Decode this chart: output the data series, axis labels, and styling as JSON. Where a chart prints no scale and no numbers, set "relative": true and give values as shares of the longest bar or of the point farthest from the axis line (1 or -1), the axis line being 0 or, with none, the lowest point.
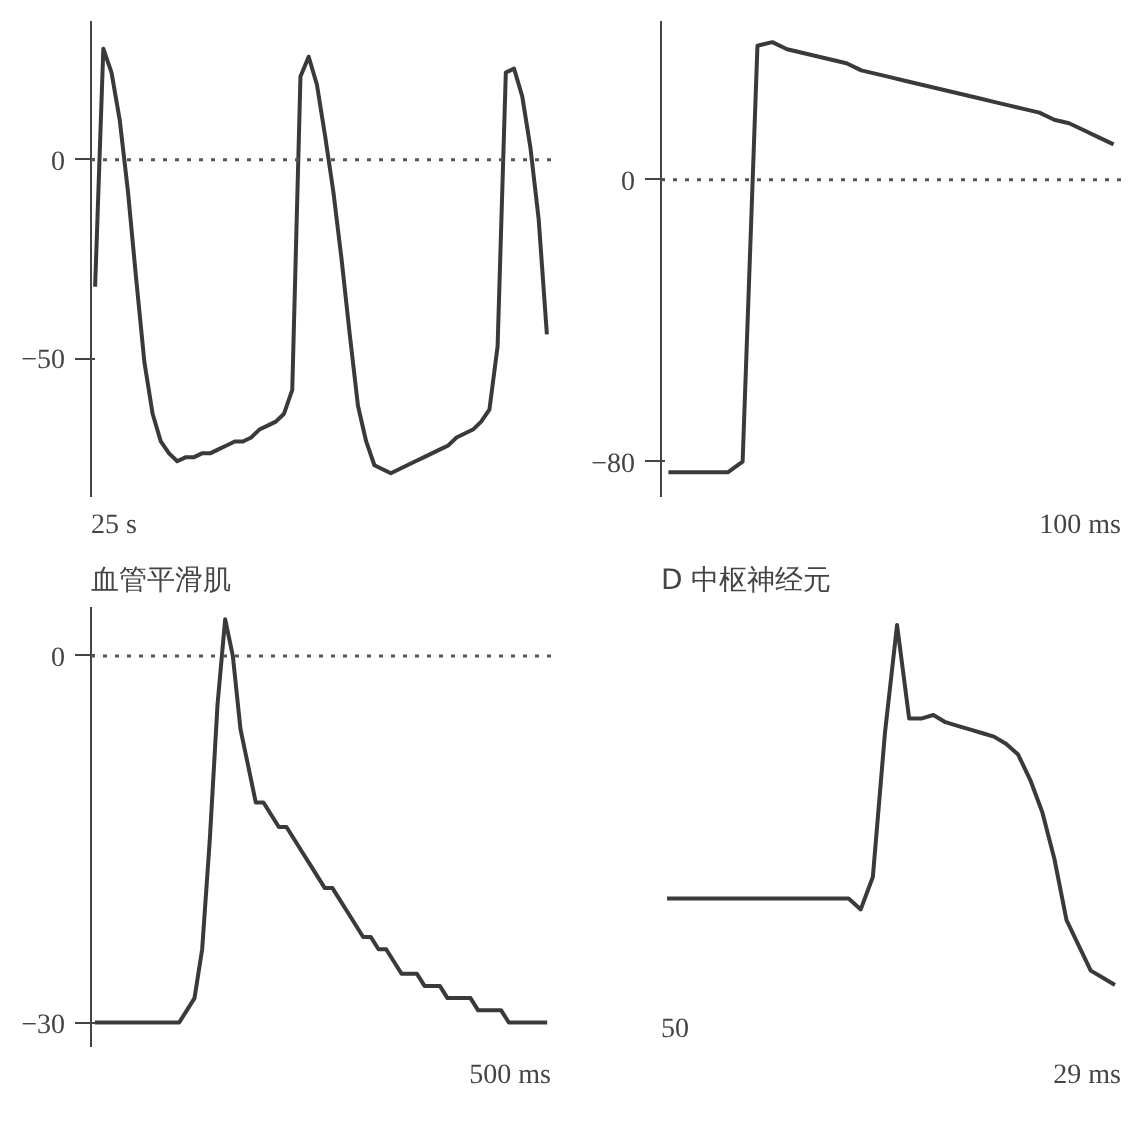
{
  "chart_data": [
    {
      "type": "line",
      "categories": [
        null,
        null,
        null,
        null,
        null,
        null,
        null,
        null,
        null,
        null,
        null,
        null,
        null,
        null,
        null,
        null,
        null,
        null,
        null,
        null,
        null,
        null,
        null,
        null,
        null,
        null,
        null,
        null,
        null,
        null,
        null,
        null,
        null,
        null,
        null,
        null,
        null,
        null,
        null,
        null,
        null,
        null,
        null,
        null,
        null,
        null,
        null,
        null,
        null,
        null,
        null,
        null,
        null,
        null,
        null,
        null
      ],
      "series": [
        {
          "color": "#3a3a3a",
          "values": [
            -32,
            28,
            22,
            10,
            -8,
            -30,
            -51,
            -64,
            -71,
            -74,
            -76,
            -75,
            -75,
            -74,
            -74,
            -73,
            -72,
            -71,
            -71,
            -70,
            -68,
            -67,
            -66,
            -64,
            -58,
            21,
            26,
            19,
            6,
            -8,
            -25,
            -44,
            -62,
            -71,
            -77,
            -78,
            -79,
            -78,
            -77,
            -76,
            -75,
            -74,
            -73,
            -72,
            -70,
            -69,
            -68,
            -66,
            -63,
            -47,
            22,
            23,
            16,
            3,
            -15,
            -44
          ]
        }
      ],
      "ylim": [
        -85,
        35
      ],
      "yticks": [
        0,
        -50
      ],
      "tick_labels": "y",
      "marker": "none",
      "line_style": "solid",
      "ref_lines": [
        {
          "axis": "y",
          "value": 0,
          "line_style": "dotted"
        }
      ],
      "annotations": [
        "25 s"
      ]
    },
    {
      "type": "line",
      "categories": [
        null,
        null,
        null,
        null,
        null,
        null,
        null,
        null,
        null,
        null,
        null,
        null,
        null,
        null,
        null,
        null,
        null,
        null,
        null,
        null,
        null,
        null,
        null,
        null,
        null,
        null,
        null,
        null,
        null,
        null,
        null
      ],
      "series": [
        {
          "color": "#3a3a3a",
          "values": [
            -83,
            -83,
            -83,
            -83,
            -83,
            -80,
            38,
            39,
            37,
            36,
            35,
            34,
            33,
            31,
            30,
            29,
            28,
            27,
            26,
            25,
            24,
            23,
            22,
            21,
            20,
            19,
            17,
            16,
            14,
            12,
            10
          ]
        }
      ],
      "ylim": [
        -90,
        45
      ],
      "yticks": [
        0,
        -80
      ],
      "tick_labels": "y",
      "marker": "none",
      "line_style": "solid",
      "ref_lines": [
        {
          "axis": "y",
          "value": 0,
          "line_style": "dotted"
        }
      ],
      "annotations": [
        "100 ms"
      ]
    },
    {
      "type": "line",
      "title": "血管平滑肌",
      "categories": [
        null,
        null,
        null,
        null,
        null,
        null,
        null,
        null,
        null,
        null,
        null,
        null,
        null,
        null,
        null,
        null,
        null,
        null,
        null,
        null,
        null,
        null,
        null,
        null,
        null,
        null,
        null,
        null,
        null,
        null,
        null,
        null,
        null,
        null,
        null,
        null,
        null,
        null,
        null,
        null,
        null,
        null,
        null,
        null,
        null,
        null,
        null,
        null,
        null,
        null,
        null,
        null,
        null,
        null,
        null,
        null,
        null,
        null,
        null,
        null
      ],
      "series": [
        {
          "color": "#3a3a3a",
          "values": [
            -30,
            -30,
            -30,
            -30,
            -30,
            -30,
            -30,
            -30,
            -30,
            -30,
            -30,
            -30,
            -29,
            -28,
            -24,
            -15,
            -4,
            3,
            0,
            -6,
            -9,
            -12,
            -12,
            -13,
            -14,
            -14,
            -15,
            -16,
            -17,
            -18,
            -19,
            -19,
            -20,
            -21,
            -22,
            -23,
            -23,
            -24,
            -24,
            -25,
            -26,
            -26,
            -26,
            -27,
            -27,
            -27,
            -28,
            -28,
            -28,
            -28,
            -29,
            -29,
            -29,
            -29,
            -30,
            -30,
            -30,
            -30,
            -30,
            -30
          ]
        }
      ],
      "ylim": [
        -32,
        4
      ],
      "yticks": [
        0,
        -30
      ],
      "tick_labels": "y",
      "marker": "none",
      "line_style": "solid",
      "ref_lines": [
        {
          "axis": "y",
          "value": 0,
          "line_style": "dotted"
        }
      ],
      "annotations": [
        "500 ms"
      ]
    },
    {
      "type": "line",
      "title": "D 中枢神经元",
      "relative": true,
      "categories": [
        null,
        null,
        null,
        null,
        null,
        null,
        null,
        null,
        null,
        null,
        null,
        null,
        null,
        null,
        null,
        null,
        null,
        null,
        null,
        null,
        null,
        null,
        null,
        null,
        null,
        null,
        null,
        null,
        null,
        null,
        null,
        null,
        null,
        null,
        null,
        null,
        null,
        null
      ],
      "series": [
        {
          "color": "#3a3a3a",
          "values": [
            0.24,
            0.24,
            0.24,
            0.24,
            0.24,
            0.24,
            0.24,
            0.24,
            0.24,
            0.24,
            0.24,
            0.24,
            0.24,
            0.24,
            0.24,
            0.24,
            0.21,
            0.3,
            0.7,
            1,
            0.74,
            0.74,
            0.75,
            0.73,
            0.72,
            0.71,
            0.7,
            0.69,
            0.67,
            0.64,
            0.57,
            0.48,
            0.35,
            0.18,
            0.11,
            0.04,
            0.02,
            0
          ]
        }
      ],
      "tick_labels": false,
      "marker": "none",
      "line_style": "solid",
      "annotations": [
        "50",
        "29 ms"
      ]
    }
  ]
}
